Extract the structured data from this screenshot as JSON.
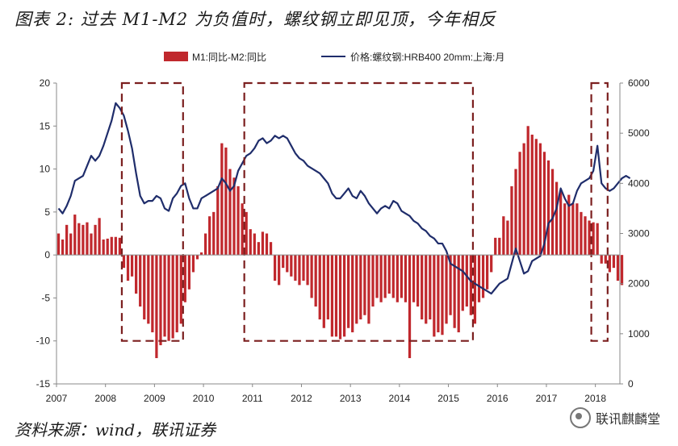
{
  "title": "图表 2:  过去 M1-M2 为负值时，螺纹钢立即见顶，今年相反",
  "source": "资料来源：wind，联讯证券",
  "watermark": "联讯麒麟堂",
  "colors": {
    "bar": "#c0282d",
    "line": "#1f2d6b",
    "box": "#7b1f1f",
    "axis": "#888888"
  },
  "chart_data": {
    "type": "bar+line",
    "title": "过去 M1-M2 为负值时，螺纹钢立即见顶，今年相反",
    "x_tick_labels": [
      "2007",
      "2008",
      "2009",
      "2010",
      "2011",
      "2012",
      "2013",
      "2014",
      "2015",
      "2016",
      "2017",
      "2018"
    ],
    "left_axis": {
      "ylim": [
        -15,
        20
      ],
      "ticks": [
        "-15",
        "-10",
        "-5",
        "0",
        "5",
        "10",
        "15",
        "20"
      ]
    },
    "right_axis": {
      "ylim": [
        0,
        6000
      ],
      "ticks": [
        "0",
        "1000",
        "2000",
        "3000",
        "4000",
        "5000",
        "6000"
      ]
    },
    "legend_position": "top-center",
    "series": [
      {
        "name": "M1:同比-M2:同比",
        "type": "bar",
        "axis": "left",
        "start": "2007-01",
        "frequency": "monthly",
        "values": [
          2.5,
          1.8,
          3.5,
          2.5,
          4.7,
          3.7,
          3.5,
          3.8,
          2.5,
          3.5,
          4.3,
          1.8,
          1.9,
          2.1,
          2.1,
          2.0,
          -1.5,
          -3.0,
          -2.5,
          -4.5,
          -6.0,
          -7.5,
          -8.0,
          -9.0,
          -12.0,
          -10.5,
          -9.5,
          -10.0,
          -9.7,
          -9.0,
          -8.0,
          -5.5,
          -4.0,
          -2.0,
          -0.5,
          0.3,
          2.5,
          4.5,
          5.0,
          8.0,
          13.0,
          12.5,
          10.0,
          9.0,
          8.0,
          6.0,
          5.0,
          3.0,
          2.5,
          1.5,
          2.7,
          2.5,
          1.5,
          -3.0,
          -3.5,
          -1.5,
          -2.0,
          -2.5,
          -3.0,
          -3.5,
          -3.0,
          -3.5,
          -5.0,
          -6.0,
          -7.5,
          -8.5,
          -7.5,
          -9.5,
          -9.5,
          -9.8,
          -9.5,
          -8.5,
          -9.0,
          -8.0,
          -7.5,
          -7.0,
          -8.0,
          -6.0,
          -5.0,
          -5.5,
          -5.0,
          -4.5,
          -5.0,
          -5.5,
          -5.0,
          -5.5,
          -12.0,
          -5.5,
          -6.0,
          -7.5,
          -8.0,
          -7.5,
          -9.5,
          -9.0,
          -9.3,
          -8.0,
          -7.0,
          -8.5,
          -9.0,
          -6.5,
          -6.0,
          -7.0,
          -8.0,
          -5.5,
          -5.0,
          -4.0,
          -2.0,
          2.0,
          2.0,
          4.5,
          4.0,
          8.0,
          10.0,
          12.0,
          13.0,
          15.0,
          14.0,
          13.5,
          13.0,
          12.0,
          11.0,
          10.0,
          8.5,
          7.5,
          6.0,
          7.0,
          6.0,
          6.0,
          5.0,
          4.5,
          4.0,
          3.8,
          3.7,
          -1.0,
          -1.0,
          -2.0,
          -1.5,
          -3.0,
          -3.5
        ]
      },
      {
        "name": "价格:螺纹钢:HRB400 20mm:上海:月",
        "type": "line",
        "axis": "right",
        "start": "2007-01",
        "frequency": "monthly",
        "values": [
          3500,
          3400,
          3550,
          3750,
          4050,
          4100,
          4150,
          4350,
          4550,
          4450,
          4550,
          4750,
          5000,
          5250,
          5600,
          5500,
          5350,
          5050,
          4700,
          4200,
          3750,
          3600,
          3650,
          3650,
          3750,
          3700,
          3500,
          3450,
          3700,
          3800,
          3950,
          4000,
          3700,
          3500,
          3500,
          3700,
          3750,
          3800,
          3850,
          3900,
          4100,
          4000,
          3850,
          3950,
          4250,
          4400,
          4550,
          4600,
          4700,
          4850,
          4900,
          4800,
          4850,
          4950,
          4900,
          4950,
          4900,
          4750,
          4600,
          4500,
          4450,
          4350,
          4300,
          4250,
          4200,
          4100,
          4000,
          3800,
          3700,
          3700,
          3800,
          3900,
          3750,
          3700,
          3850,
          3750,
          3600,
          3500,
          3400,
          3500,
          3550,
          3500,
          3650,
          3600,
          3450,
          3400,
          3350,
          3250,
          3200,
          3100,
          3050,
          2950,
          2900,
          2800,
          2800,
          2650,
          2400,
          2350,
          2300,
          2250,
          2150,
          2050,
          2000,
          1950,
          1900,
          1850,
          1800,
          1900,
          2000,
          2050,
          2100,
          2400,
          2700,
          2450,
          2200,
          2250,
          2450,
          2500,
          2550,
          2800,
          3200,
          3300,
          3500,
          3900,
          3700,
          3550,
          3600,
          3850,
          4000,
          4050,
          4100,
          4250,
          4750,
          4000,
          3900,
          3850,
          3900,
          4000,
          4100,
          4150,
          4100
        ]
      }
    ],
    "highlight_boxes": [
      {
        "from": "2008-05",
        "to": "2009-07",
        "label": ""
      },
      {
        "from": "2010-11",
        "to": "2015-06",
        "label": ""
      },
      {
        "from": "2017-12",
        "to": "2018-03",
        "label": ""
      }
    ]
  }
}
